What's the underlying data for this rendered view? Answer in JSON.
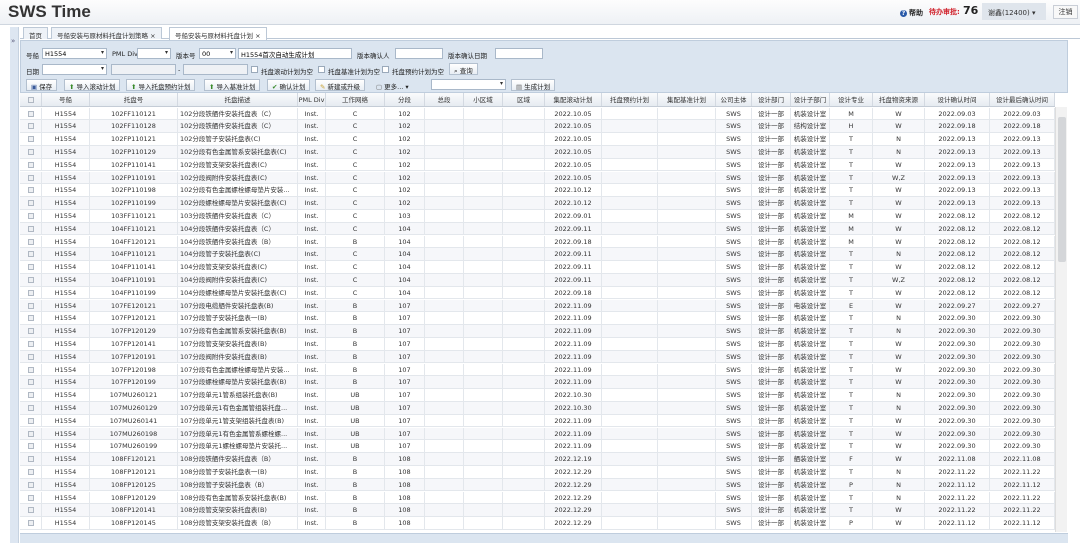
{
  "header": {
    "app_title": "SWS Time",
    "help_label": "帮助",
    "todo_label": "待办审批:",
    "todo_count": "76",
    "user": "谢鑫(12400) ▾",
    "logout_label": "注销",
    "sidebar_toggle": "»"
  },
  "tabs": [
    {
      "label": "首页"
    },
    {
      "label": "号船安装与原材料托盘计划策略 ×"
    },
    {
      "label": "号船安装与原材料托盘计划 ×"
    }
  ],
  "filters": {
    "ship_label": "号船",
    "ship_value": "H1554",
    "pml_label": "PML Div",
    "pml_value": "",
    "version_label": "版本号",
    "version_value": "00",
    "version_desc": "H1554首次自动生成计划",
    "confirmer_label": "版本确认人",
    "confirmer_value": "",
    "confirm_date_label": "版本确认日期",
    "confirm_date_value": "",
    "date_label": "日期",
    "date_value": "",
    "date_from": "",
    "date_sep": "-",
    "date_to": "",
    "chk_rolling": "托盘滚动计划为空",
    "chk_baseline": "托盘基准计划为空",
    "chk_reserve": "托盘预约计划为空",
    "search_label": "查询"
  },
  "toolbar": {
    "save": "保存",
    "import_rolling": "导入滚动计划",
    "import_reserve": "导入托盘预约计划",
    "import_baseline": "导入基准计划",
    "confirm": "确认计划",
    "new_upgrade": "新建或升级",
    "more": "更多... ▾",
    "select_value": "",
    "generate": "生成计划"
  },
  "table": {
    "columns": [
      "",
      "号船",
      "托盘号",
      "托盘描述",
      "PML Div",
      "工作网络",
      "分段",
      "总段",
      "小区域",
      "区域",
      "集配滚动计划",
      "托盘预约计划",
      "集配基准计划",
      "公司主体",
      "设计部门",
      "设计子部门",
      "设计专业",
      "托盘物资来源",
      "设计确认时间",
      "设计最后确认时间"
    ],
    "rows": [
      [
        "H1554",
        "102FF110121",
        "102分段铁舾件安装托盘表（C）",
        "Inst.",
        "C",
        "102",
        "",
        "",
        "",
        "2022.10.05",
        "",
        "",
        "SWS",
        "设计一部",
        "机装设计室",
        "M",
        "W",
        "2022.09.03",
        "2022.09.03"
      ],
      [
        "H1554",
        "102FF110128",
        "102分段铁舾件安装托盘表（C）",
        "Inst.",
        "C",
        "102",
        "",
        "",
        "",
        "2022.10.05",
        "",
        "",
        "SWS",
        "设计一部",
        "结构设计室",
        "H",
        "W",
        "2022.09.18",
        "2022.09.18"
      ],
      [
        "H1554",
        "102FP110121",
        "102分段管子安装托盘表(C)",
        "Inst.",
        "C",
        "102",
        "",
        "",
        "",
        "2022.10.05",
        "",
        "",
        "SWS",
        "设计一部",
        "机装设计室",
        "T",
        "N",
        "2022.09.13",
        "2022.09.13"
      ],
      [
        "H1554",
        "102FP110129",
        "102分段有色金属管系安装托盘表(C)",
        "Inst.",
        "C",
        "102",
        "",
        "",
        "",
        "2022.10.05",
        "",
        "",
        "SWS",
        "设计一部",
        "机装设计室",
        "T",
        "N",
        "2022.09.13",
        "2022.09.13"
      ],
      [
        "H1554",
        "102FP110141",
        "102分段管支架安装托盘表(C)",
        "Inst.",
        "C",
        "102",
        "",
        "",
        "",
        "2022.10.05",
        "",
        "",
        "SWS",
        "设计一部",
        "机装设计室",
        "T",
        "W",
        "2022.09.13",
        "2022.09.13"
      ],
      [
        "H1554",
        "102FP110191",
        "102分段阀附件安装托盘表(C)",
        "Inst.",
        "C",
        "102",
        "",
        "",
        "",
        "2022.10.05",
        "",
        "",
        "SWS",
        "设计一部",
        "机装设计室",
        "T",
        "W,Z",
        "2022.09.13",
        "2022.09.13"
      ],
      [
        "H1554",
        "102FP110198",
        "102分段有色金属螺栓螺母垫片安装...",
        "Inst.",
        "C",
        "102",
        "",
        "",
        "",
        "2022.10.12",
        "",
        "",
        "SWS",
        "设计一部",
        "机装设计室",
        "T",
        "W",
        "2022.09.13",
        "2022.09.13"
      ],
      [
        "H1554",
        "102FP110199",
        "102分段螺栓螺母垫片安装托盘表(C)",
        "Inst.",
        "C",
        "102",
        "",
        "",
        "",
        "2022.10.12",
        "",
        "",
        "SWS",
        "设计一部",
        "机装设计室",
        "T",
        "W",
        "2022.09.13",
        "2022.09.13"
      ],
      [
        "H1554",
        "103FF110121",
        "103分段铁舾件安装托盘表（C）",
        "Inst.",
        "C",
        "103",
        "",
        "",
        "",
        "2022.09.01",
        "",
        "",
        "SWS",
        "设计一部",
        "机装设计室",
        "M",
        "W",
        "2022.08.12",
        "2022.08.12"
      ],
      [
        "H1554",
        "104FF110121",
        "104分段铁舾件安装托盘表（C）",
        "Inst.",
        "C",
        "104",
        "",
        "",
        "",
        "2022.09.11",
        "",
        "",
        "SWS",
        "设计一部",
        "机装设计室",
        "M",
        "W",
        "2022.08.12",
        "2022.08.12"
      ],
      [
        "H1554",
        "104FF120121",
        "104分段铁舾件安装托盘表（B）",
        "Inst.",
        "B",
        "104",
        "",
        "",
        "",
        "2022.09.18",
        "",
        "",
        "SWS",
        "设计一部",
        "机装设计室",
        "M",
        "W",
        "2022.08.12",
        "2022.08.12"
      ],
      [
        "H1554",
        "104FP110121",
        "104分段管子安装托盘表(C)",
        "Inst.",
        "C",
        "104",
        "",
        "",
        "",
        "2022.09.11",
        "",
        "",
        "SWS",
        "设计一部",
        "机装设计室",
        "T",
        "N",
        "2022.08.12",
        "2022.08.12"
      ],
      [
        "H1554",
        "104FP110141",
        "104分段管支架安装托盘表(C)",
        "Inst.",
        "C",
        "104",
        "",
        "",
        "",
        "2022.09.11",
        "",
        "",
        "SWS",
        "设计一部",
        "机装设计室",
        "T",
        "W",
        "2022.08.12",
        "2022.08.12"
      ],
      [
        "H1554",
        "104FP110191",
        "104分段阀附件安装托盘表(C)",
        "Inst.",
        "C",
        "104",
        "",
        "",
        "",
        "2022.09.11",
        "",
        "",
        "SWS",
        "设计一部",
        "机装设计室",
        "T",
        "W,Z",
        "2022.08.12",
        "2022.08.12"
      ],
      [
        "H1554",
        "104FP110199",
        "104分段螺栓螺母垫片安装托盘表(C)",
        "Inst.",
        "C",
        "104",
        "",
        "",
        "",
        "2022.09.18",
        "",
        "",
        "SWS",
        "设计一部",
        "机装设计室",
        "T",
        "W",
        "2022.08.12",
        "2022.08.12"
      ],
      [
        "H1554",
        "107FE120121",
        "107分段电缆舾件安装托盘表(B)",
        "Inst.",
        "B",
        "107",
        "",
        "",
        "",
        "2022.11.09",
        "",
        "",
        "SWS",
        "设计一部",
        "电装设计室",
        "E",
        "W",
        "2022.09.27",
        "2022.09.27"
      ],
      [
        "H1554",
        "107FP120121",
        "107分段管子安装托盘表一(B)",
        "Inst.",
        "B",
        "107",
        "",
        "",
        "",
        "2022.11.09",
        "",
        "",
        "SWS",
        "设计一部",
        "机装设计室",
        "T",
        "N",
        "2022.09.30",
        "2022.09.30"
      ],
      [
        "H1554",
        "107FP120129",
        "107分段有色金属管系安装托盘表(B)",
        "Inst.",
        "B",
        "107",
        "",
        "",
        "",
        "2022.11.09",
        "",
        "",
        "SWS",
        "设计一部",
        "机装设计室",
        "T",
        "N",
        "2022.09.30",
        "2022.09.30"
      ],
      [
        "H1554",
        "107FP120141",
        "107分段管支架安装托盘表(B)",
        "Inst.",
        "B",
        "107",
        "",
        "",
        "",
        "2022.11.09",
        "",
        "",
        "SWS",
        "设计一部",
        "机装设计室",
        "T",
        "W",
        "2022.09.30",
        "2022.09.30"
      ],
      [
        "H1554",
        "107FP120191",
        "107分段阀附件安装托盘表(B)",
        "Inst.",
        "B",
        "107",
        "",
        "",
        "",
        "2022.11.09",
        "",
        "",
        "SWS",
        "设计一部",
        "机装设计室",
        "T",
        "W",
        "2022.09.30",
        "2022.09.30"
      ],
      [
        "H1554",
        "107FP120198",
        "107分段有色金属螺栓螺母垫片安装...",
        "Inst.",
        "B",
        "107",
        "",
        "",
        "",
        "2022.11.09",
        "",
        "",
        "SWS",
        "设计一部",
        "机装设计室",
        "T",
        "W",
        "2022.09.30",
        "2022.09.30"
      ],
      [
        "H1554",
        "107FP120199",
        "107分段螺栓螺母垫片安装托盘表(B)",
        "Inst.",
        "B",
        "107",
        "",
        "",
        "",
        "2022.11.09",
        "",
        "",
        "SWS",
        "设计一部",
        "机装设计室",
        "T",
        "W",
        "2022.09.30",
        "2022.09.30"
      ],
      [
        "H1554",
        "107MU260121",
        "107分段单元1管系组装托盘表(B)",
        "Inst.",
        "UB",
        "107",
        "",
        "",
        "",
        "2022.10.30",
        "",
        "",
        "SWS",
        "设计一部",
        "机装设计室",
        "T",
        "N",
        "2022.09.30",
        "2022.09.30"
      ],
      [
        "H1554",
        "107MU260129",
        "107分段单元1有色金属管组装托盘...",
        "Inst.",
        "UB",
        "107",
        "",
        "",
        "",
        "2022.10.30",
        "",
        "",
        "SWS",
        "设计一部",
        "机装设计室",
        "T",
        "N",
        "2022.09.30",
        "2022.09.30"
      ],
      [
        "H1554",
        "107MU260141",
        "107分段单元1管支架组装托盘表(B)",
        "Inst.",
        "UB",
        "107",
        "",
        "",
        "",
        "2022.11.09",
        "",
        "",
        "SWS",
        "设计一部",
        "机装设计室",
        "T",
        "W",
        "2022.09.30",
        "2022.09.30"
      ],
      [
        "H1554",
        "107MU260198",
        "107分段单元1有色金属管系螺栓螺...",
        "Inst.",
        "UB",
        "107",
        "",
        "",
        "",
        "2022.11.09",
        "",
        "",
        "SWS",
        "设计一部",
        "机装设计室",
        "T",
        "W",
        "2022.09.30",
        "2022.09.30"
      ],
      [
        "H1554",
        "107MU260199",
        "107分段单元1螺栓螺母垫片安装托...",
        "Inst.",
        "UB",
        "107",
        "",
        "",
        "",
        "2022.11.09",
        "",
        "",
        "SWS",
        "设计一部",
        "机装设计室",
        "T",
        "W",
        "2022.09.30",
        "2022.09.30"
      ],
      [
        "H1554",
        "108FF120121",
        "108分段铁舾件安装托盘表（B）",
        "Inst.",
        "B",
        "108",
        "",
        "",
        "",
        "2022.12.19",
        "",
        "",
        "SWS",
        "设计一部",
        "舾装设计室",
        "F",
        "W",
        "2022.11.08",
        "2022.11.08"
      ],
      [
        "H1554",
        "108FP120121",
        "108分段管子安装托盘表一(B)",
        "Inst.",
        "B",
        "108",
        "",
        "",
        "",
        "2022.12.29",
        "",
        "",
        "SWS",
        "设计一部",
        "机装设计室",
        "T",
        "N",
        "2022.11.22",
        "2022.11.22"
      ],
      [
        "H1554",
        "108FP120125",
        "108分段管子安装托盘表（B）",
        "Inst.",
        "B",
        "108",
        "",
        "",
        "",
        "2022.12.29",
        "",
        "",
        "SWS",
        "设计一部",
        "机装设计室",
        "P",
        "N",
        "2022.11.12",
        "2022.11.12"
      ],
      [
        "H1554",
        "108FP120129",
        "108分段有色金属管系安装托盘表(B)",
        "Inst.",
        "B",
        "108",
        "",
        "",
        "",
        "2022.12.29",
        "",
        "",
        "SWS",
        "设计一部",
        "机装设计室",
        "T",
        "N",
        "2022.11.22",
        "2022.11.22"
      ],
      [
        "H1554",
        "108FP120141",
        "108分段管支架安装托盘表(B)",
        "Inst.",
        "B",
        "108",
        "",
        "",
        "",
        "2022.12.29",
        "",
        "",
        "SWS",
        "设计一部",
        "机装设计室",
        "T",
        "W",
        "2022.11.22",
        "2022.11.22"
      ],
      [
        "H1554",
        "108FP120145",
        "108分段管支架安装托盘表（B）",
        "Inst.",
        "B",
        "108",
        "",
        "",
        "",
        "2022.12.29",
        "",
        "",
        "SWS",
        "设计一部",
        "机装设计室",
        "P",
        "W",
        "2022.11.12",
        "2022.11.12"
      ]
    ]
  },
  "colors": {
    "accent": "#d0202a",
    "panel": "#dbe5f0"
  }
}
